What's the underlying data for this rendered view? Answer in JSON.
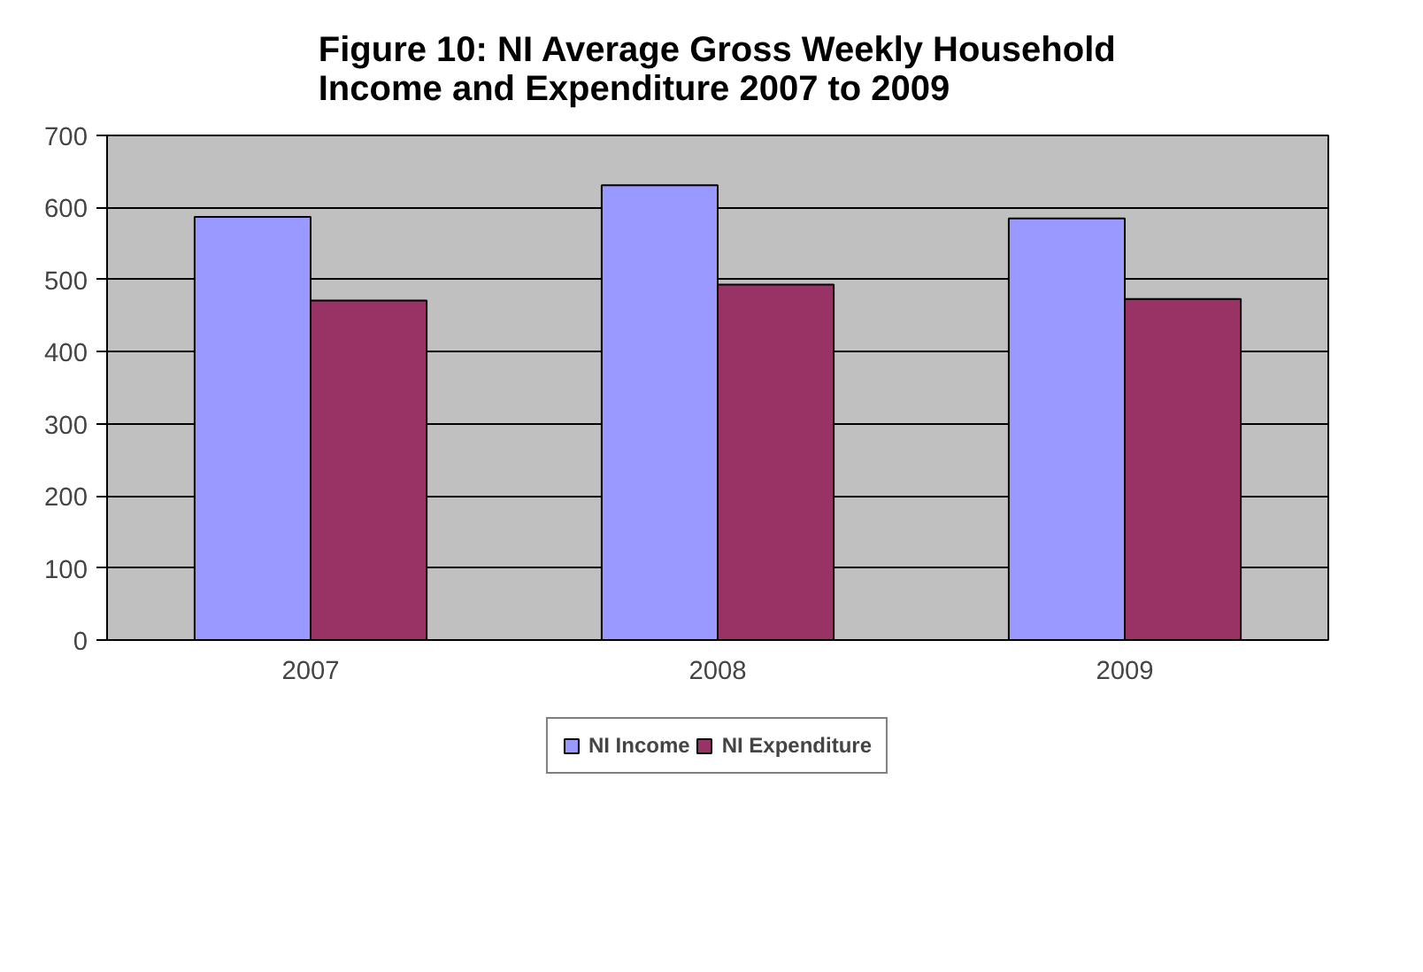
{
  "chart_data": {
    "type": "bar",
    "title": "Figure 10: NI Average Gross Weekly Household\nIncome and Expenditure 2007 to 2009",
    "categories": [
      "2007",
      "2008",
      "2009"
    ],
    "series": [
      {
        "name": "NI Income",
        "color": "#9999ff",
        "values": [
          587,
          631,
          585
        ]
      },
      {
        "name": "NI Expenditure",
        "color": "#993366",
        "values": [
          471,
          493,
          473
        ]
      }
    ],
    "ylim": [
      0,
      700
    ],
    "yticks": [
      0,
      100,
      200,
      300,
      400,
      500,
      600,
      700
    ],
    "grid": "y",
    "legend": "bottom"
  }
}
